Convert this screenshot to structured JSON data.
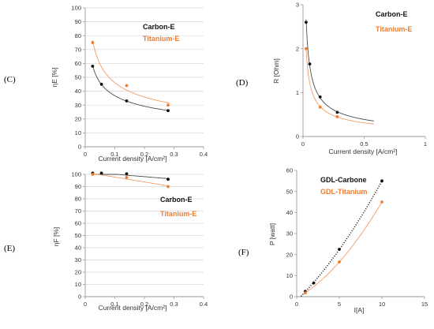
{
  "colors": {
    "black_series": "#111111",
    "orange_series": "#ed7d31",
    "axis": "#9a9a9a",
    "grid": "#d9d9d9"
  },
  "panel_labels": {
    "C": "(C)",
    "D": "(D)",
    "E": "(E)",
    "F": "(F)"
  },
  "chart_data": [
    {
      "id": "C",
      "type": "scatter",
      "xlabel": "Current density [A/cm²]",
      "ylabel": "ηE [%]",
      "xlim": [
        0,
        0.4
      ],
      "ylim": [
        0,
        100
      ],
      "xticks": [
        0,
        0.1,
        0.2,
        0.3,
        0.4
      ],
      "yticks": [
        0,
        10,
        20,
        30,
        40,
        50,
        60,
        70,
        80,
        90,
        100
      ],
      "grid": "horizontal",
      "legend_position": "top-right",
      "series": [
        {
          "name": "Carbon-E",
          "color": "#111111",
          "x": [
            0.025,
            0.055,
            0.14,
            0.28
          ],
          "y": [
            58,
            45,
            33,
            26
          ],
          "trend": "power",
          "trend_range": [
            0.025,
            0.28
          ]
        },
        {
          "name": "Titanium-E",
          "color": "#ed7d31",
          "x": [
            0.025,
            0.14,
            0.28
          ],
          "y": [
            75,
            44,
            30
          ],
          "trend": "power",
          "trend_range": [
            0.025,
            0.285
          ]
        }
      ]
    },
    {
      "id": "D",
      "type": "scatter",
      "xlabel": "Current density [A/cm²]",
      "ylabel": "R [Ohm]",
      "xlim": [
        0,
        1
      ],
      "ylim": [
        0,
        3
      ],
      "xticks": [
        0,
        0.5,
        1
      ],
      "yticks": [
        0,
        1,
        2,
        3
      ],
      "grid": "none",
      "legend_position": "top-right",
      "series": [
        {
          "name": "Carbon-E",
          "color": "#111111",
          "x": [
            0.025,
            0.055,
            0.14,
            0.28
          ],
          "y": [
            2.6,
            1.65,
            0.9,
            0.55
          ],
          "trend": "power",
          "trend_range": [
            0.025,
            0.58
          ]
        },
        {
          "name": "Titanium-E",
          "color": "#ed7d31",
          "x": [
            0.025,
            0.14,
            0.28
          ],
          "y": [
            2.0,
            0.67,
            0.45
          ],
          "trend": "power",
          "trend_range": [
            0.025,
            0.58
          ]
        }
      ]
    },
    {
      "id": "E",
      "type": "scatter",
      "xlabel": "Current density [A/cm²]",
      "ylabel": "ηF [%]",
      "xlim": [
        0,
        0.4
      ],
      "ylim": [
        0,
        100
      ],
      "xticks": [
        0,
        0.1,
        0.2,
        0.3,
        0.4
      ],
      "yticks": [
        0,
        10,
        20,
        30,
        40,
        50,
        60,
        70,
        80,
        90,
        100
      ],
      "grid": "horizontal",
      "legend_position": "right",
      "series": [
        {
          "name": "Carbon-E",
          "color": "#111111",
          "x": [
            0.025,
            0.055,
            0.14,
            0.28
          ],
          "y": [
            101,
            101,
            100.5,
            96
          ],
          "trend": "linear",
          "trend_range": [
            0.025,
            0.28
          ]
        },
        {
          "name": "Titanium-E",
          "color": "#ed7d31",
          "x": [
            0.025,
            0.14,
            0.28
          ],
          "y": [
            100,
            97.5,
            90
          ],
          "trend": "linear",
          "trend_range": [
            0.025,
            0.28
          ]
        }
      ]
    },
    {
      "id": "F",
      "type": "scatter",
      "xlabel": "I[A]",
      "ylabel": "P [watt]",
      "xlim": [
        0,
        15
      ],
      "ylim": [
        0,
        60
      ],
      "xticks": [
        0,
        5,
        10,
        15
      ],
      "yticks": [
        0,
        10,
        20,
        30,
        40,
        50,
        60
      ],
      "grid": "none",
      "legend_position": "top-left",
      "series": [
        {
          "name": "GDL-Carbone",
          "color": "#111111",
          "x": [
            1,
            2,
            5,
            10
          ],
          "y": [
            2.5,
            6.5,
            22.5,
            55
          ],
          "trend": "polynomial",
          "trend_style": "dotted",
          "trend_range": [
            0.5,
            10
          ]
        },
        {
          "name": "GDL-Titanium",
          "color": "#ed7d31",
          "x": [
            1,
            5,
            10
          ],
          "y": [
            1.8,
            16.5,
            45
          ],
          "trend": "polynomial",
          "trend_style": "solid",
          "trend_range": [
            0.5,
            10
          ]
        }
      ]
    }
  ]
}
